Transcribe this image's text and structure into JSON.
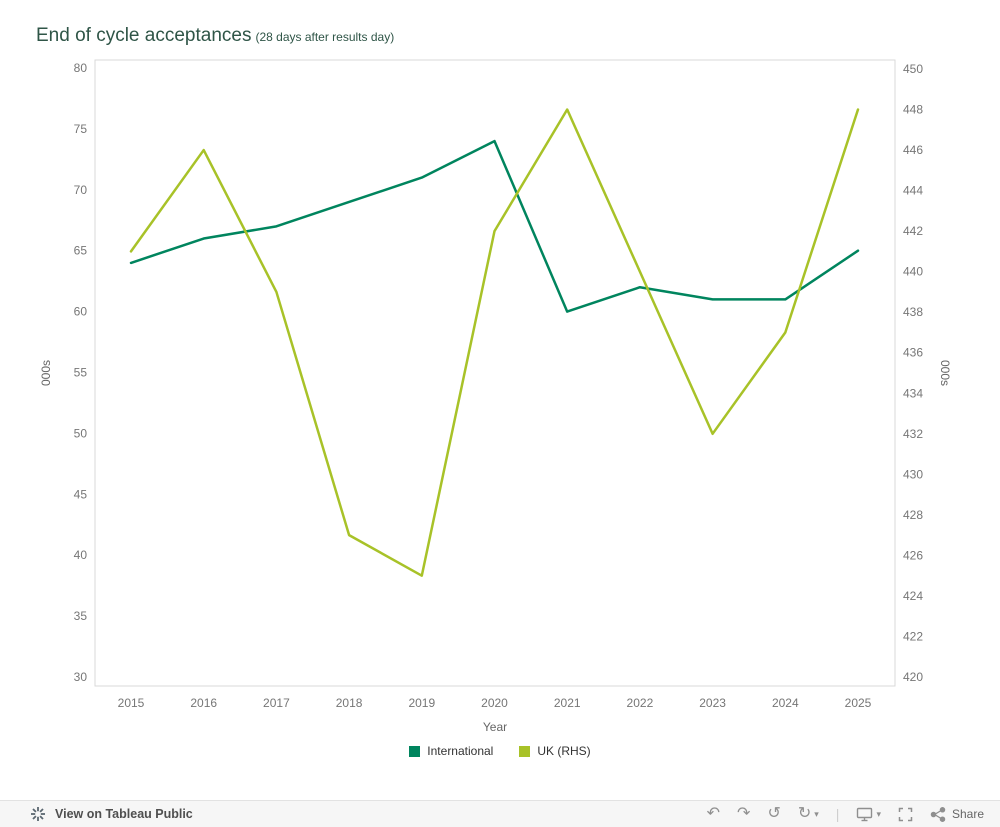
{
  "title": {
    "main": "End of cycle acceptances",
    "sub": "(28 days after results day)"
  },
  "chart_data": {
    "type": "line",
    "x": [
      "2015",
      "2016",
      "2017",
      "2018",
      "2019",
      "2020",
      "2021",
      "2022",
      "2023",
      "2024",
      "2025"
    ],
    "xlabel": "Year",
    "grid": false,
    "legend_position": "bottom",
    "left_axis": {
      "label": "000s",
      "min": 30,
      "max": 80,
      "ticks": [
        30,
        35,
        40,
        45,
        50,
        55,
        60,
        65,
        70,
        75,
        80
      ]
    },
    "right_axis": {
      "label": "000s",
      "min": 420,
      "max": 450,
      "ticks": [
        420,
        422,
        424,
        426,
        428,
        430,
        432,
        434,
        436,
        438,
        440,
        442,
        444,
        446,
        448,
        450
      ]
    },
    "series": [
      {
        "name": "International",
        "axis": "left",
        "color": "#00855e",
        "values": [
          64,
          66,
          67,
          69,
          71,
          74,
          60,
          62,
          61,
          61,
          65
        ]
      },
      {
        "name": "UK (RHS)",
        "axis": "right",
        "color": "#a8c228",
        "values": [
          441,
          446,
          439,
          427,
          425,
          442,
          448,
          440,
          432,
          437,
          448
        ]
      }
    ]
  },
  "footer": {
    "view_text": "View on Tableau Public",
    "share_label": "Share",
    "icons": {
      "undo": "↶",
      "redo": "↷",
      "reset": "↺",
      "refresh": "↻",
      "caret": "▾",
      "separator": "|"
    }
  }
}
